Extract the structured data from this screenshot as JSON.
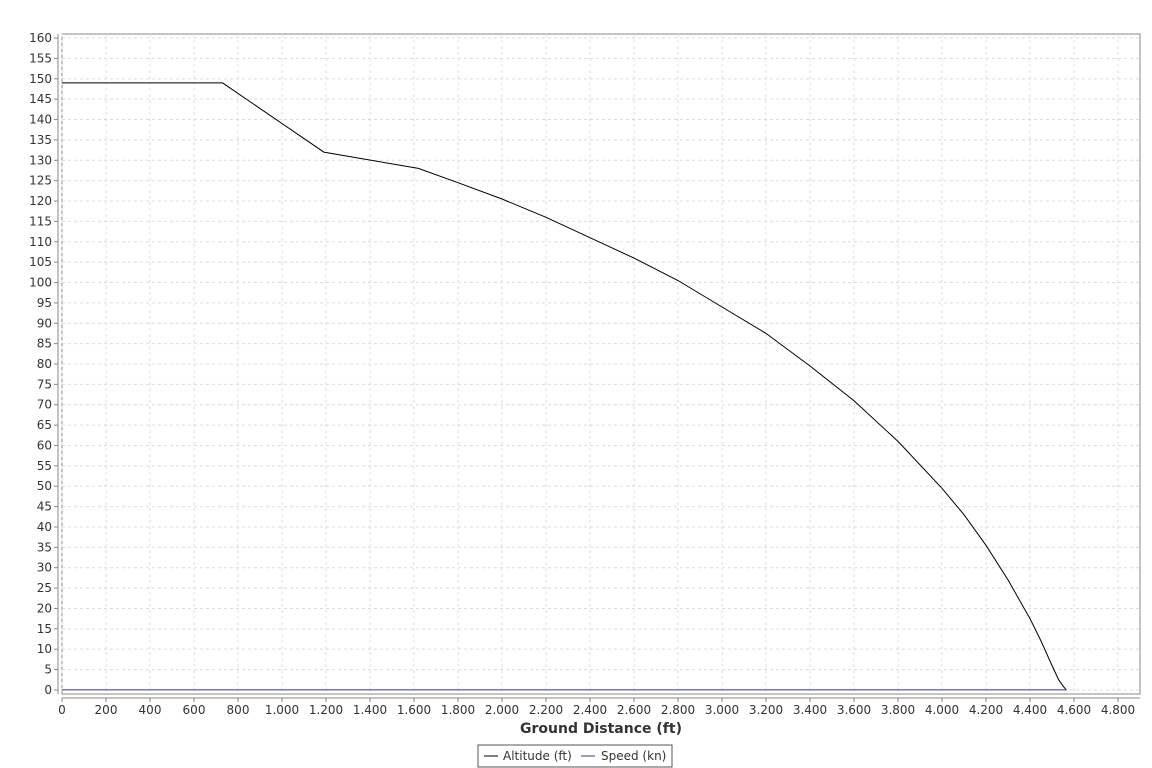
{
  "chart_data": {
    "type": "line",
    "title": "",
    "xlabel": "Ground Distance (ft)",
    "ylabel": "",
    "xlim": [
      0,
      4900
    ],
    "ylim": [
      -1,
      161
    ],
    "x_ticks": [
      0,
      200,
      400,
      600,
      800,
      1000,
      1200,
      1400,
      1600,
      1800,
      2000,
      2200,
      2400,
      2600,
      2800,
      3000,
      3200,
      3400,
      3600,
      3800,
      4000,
      4200,
      4400,
      4600,
      4800
    ],
    "x_tick_labels": [
      "0",
      "200",
      "400",
      "600",
      "800",
      "1.000",
      "1.200",
      "1.400",
      "1.600",
      "1.800",
      "2.000",
      "2.200",
      "2.400",
      "2.600",
      "2.800",
      "3.000",
      "3.200",
      "3.400",
      "3.600",
      "3.800",
      "4.000",
      "4.200",
      "4.400",
      "4.600",
      "4.800"
    ],
    "y_ticks": [
      0,
      5,
      10,
      15,
      20,
      25,
      30,
      35,
      40,
      45,
      50,
      55,
      60,
      65,
      70,
      75,
      80,
      85,
      90,
      95,
      100,
      105,
      110,
      115,
      120,
      125,
      130,
      135,
      140,
      145,
      150,
      155,
      160
    ],
    "grid": true,
    "legend_position": "bottom",
    "series": [
      {
        "name": "Altitude (ft)",
        "color": "#000000",
        "x": [
          0,
          730,
          1190,
          1620,
          1800,
          2000,
          2200,
          2400,
          2600,
          2800,
          3000,
          3200,
          3400,
          3600,
          3800,
          4000,
          4100,
          4200,
          4300,
          4400,
          4450,
          4500,
          4530,
          4550,
          4560,
          4565
        ],
        "y": [
          149,
          149,
          132,
          128,
          124.5,
          120.5,
          116,
          111,
          106,
          100.5,
          94,
          87.5,
          79.5,
          71,
          61,
          49.5,
          43,
          35.5,
          27,
          17.5,
          12,
          6,
          2.5,
          1,
          0.3,
          0
        ]
      },
      {
        "name": "Speed (kn)",
        "color": "#3333aa",
        "x": [
          0,
          4565
        ],
        "y": [
          0,
          0
        ]
      }
    ]
  }
}
